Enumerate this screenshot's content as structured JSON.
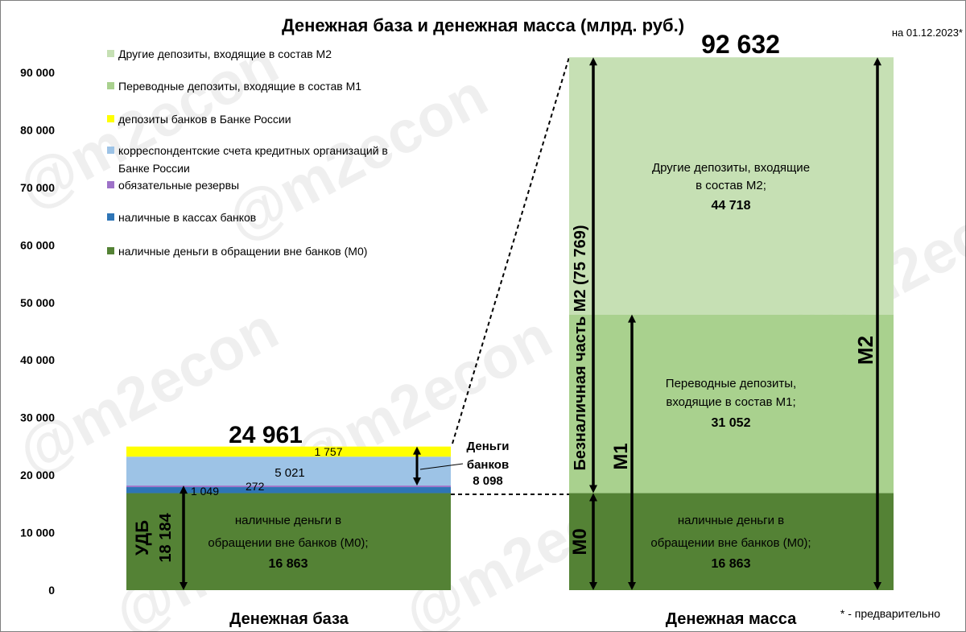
{
  "chart_data": {
    "type": "bar",
    "title": "Денежная база и денежная масса (млрд. руб.)",
    "date_note": "на 01.12.2023*",
    "footnote": "* - предварительно",
    "watermark": "@m2econ",
    "ylim": [
      0,
      90000
    ],
    "yticks": [
      0,
      10000,
      20000,
      30000,
      40000,
      50000,
      60000,
      70000,
      80000,
      90000
    ],
    "ytick_labels": [
      "0",
      "10 000",
      "20 000",
      "30 000",
      "40 000",
      "50 000",
      "60 000",
      "70 000",
      "80 000",
      "90 000"
    ],
    "grid": false,
    "legend_placement": "top-left",
    "categories": [
      "Денежная база",
      "Денежная масса"
    ],
    "legend": [
      {
        "label": "Другие депозиты, входящие в состав М2",
        "color": "#c6e0b4"
      },
      {
        "label": "Переводные депозиты, входящие в состав М1",
        "color": "#a9d18e"
      },
      {
        "label": "депозиты банков в Банке России",
        "color": "#ffff00"
      },
      {
        "label": "корреспондентские счета кредитных организаций в",
        "label2": "Банке России",
        "color": "#9dc3e6"
      },
      {
        "label": "обязательные резервы",
        "color": "#9e72c8"
      },
      {
        "label": "наличные в кассах банков",
        "color": "#2e75b6"
      },
      {
        "label": "наличные деньги в обращении вне банков (М0)",
        "color": "#548235"
      }
    ],
    "money_base": {
      "total": 24961,
      "total_label": "24 961",
      "segments": [
        {
          "name": "наличные деньги в обращении вне банков (М0)",
          "value": 16863,
          "value_label": "16 863",
          "color": "#548235",
          "text_lines": [
            "наличные деньги в",
            "обращении вне банков (М0);"
          ]
        },
        {
          "name": "наличные в кассах банков",
          "value": 1049,
          "value_label": "1 049",
          "color": "#2e75b6"
        },
        {
          "name": "обязательные резервы",
          "value": 272,
          "value_label": "272",
          "color": "#9e72c8"
        },
        {
          "name": "корреспондентские счета кредитных организаций в Банке России",
          "value": 5021,
          "value_label": "5 021",
          "color": "#9dc3e6"
        },
        {
          "name": "депозиты банков в Банке России",
          "value": 1757,
          "value_label": "1 757",
          "color": "#ffff00"
        }
      ],
      "udb_label": "УДБ",
      "udb_value": "18 184",
      "bank_money_label": [
        "Деньги",
        "банков"
      ],
      "bank_money_value": "8 098"
    },
    "money_supply": {
      "total": 92632,
      "total_label": "92 632",
      "segments": [
        {
          "name": "наличные деньги в обращении вне банков (М0)",
          "value": 16863,
          "value_label": "16 863",
          "color": "#548235",
          "text_lines": [
            "наличные деньги в",
            "обращении вне банков (М0);"
          ]
        },
        {
          "name": "Переводные депозиты, входящие в состав М1",
          "value": 31052,
          "value_label": "31 052",
          "color": "#a9d18e",
          "text_lines": [
            "Переводные депозиты,",
            "входящие в состав М1;"
          ]
        },
        {
          "name": "Другие депозиты, входящие в состав М2",
          "value": 44718,
          "value_label": "44 718",
          "color": "#c6e0b4",
          "text_lines": [
            "Другие депозиты, входящие",
            "в состав М2;"
          ]
        }
      ],
      "m0_label": "М0",
      "m1_label": "М1",
      "m2_label": "М2",
      "noncash_label": "Безналичная часть М2 (75 769)"
    }
  }
}
